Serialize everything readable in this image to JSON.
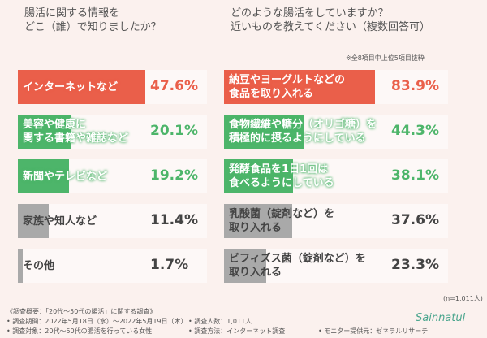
{
  "chart_data": [
    {
      "type": "bar",
      "orientation": "horizontal",
      "title": [
        "腸活に関する情報を",
        "どこ（誰）で知りましたか？"
      ],
      "categories": [
        "インターネットなど",
        "美容や健康に\n関する書籍や雑誌など",
        "新聞やテレビなど",
        "家族や知人など",
        "その他"
      ],
      "values": [
        47.6,
        20.1,
        19.2,
        11.4,
        1.7
      ],
      "value_labels": [
        "47.6%",
        "20.1%",
        "19.2%",
        "11.4%",
        "1.7%"
      ],
      "colors": [
        "#ea5f4a",
        "#4db56a",
        "#4db56a",
        "#a9a9a9",
        "#a9a9a9"
      ],
      "xlim": [
        0,
        50
      ]
    },
    {
      "type": "bar",
      "orientation": "horizontal",
      "title": [
        "どのような腸活をしていますか？",
        "近いものを教えてください（複数回答可）"
      ],
      "note": "※全8項目中上位5項目抜粋",
      "categories": [
        "納豆やヨーグルトなどの\n食品を取り入れる",
        "食物繊維や糖分（オリゴ糖）を\n積極的に摂るようにしている",
        "発酵食品を1日1回は\n食べるようにしている",
        "乳酸菌（錠剤など）を\n取り入れる",
        "ビフィズス菌（錠剤など）を\n取り入れる"
      ],
      "values": [
        83.9,
        44.3,
        38.1,
        37.6,
        23.3
      ],
      "value_labels": [
        "83.9%",
        "44.3%",
        "38.1%",
        "37.6%",
        "23.3%"
      ],
      "colors": [
        "#ea5f4a",
        "#4db56a",
        "#4db56a",
        "#a9a9a9",
        "#a9a9a9"
      ],
      "xlim": [
        0,
        90
      ],
      "sample": "(n=1,011人)"
    }
  ],
  "footer": {
    "heading": "《調査概要：「20代〜50代の腸活」に関する調査》",
    "items": [
      "• 調査期間：2022年5月18日（水）〜2022年5月19日（木）",
      "• 調査対象：20代〜50代の腸活を行っている女性",
      "• 調査人数：1,011人",
      "• 調査方法：インターネット調査",
      "• モニター提供元：ゼネラルリサーチ"
    ],
    "logo": "Sainnatul"
  }
}
